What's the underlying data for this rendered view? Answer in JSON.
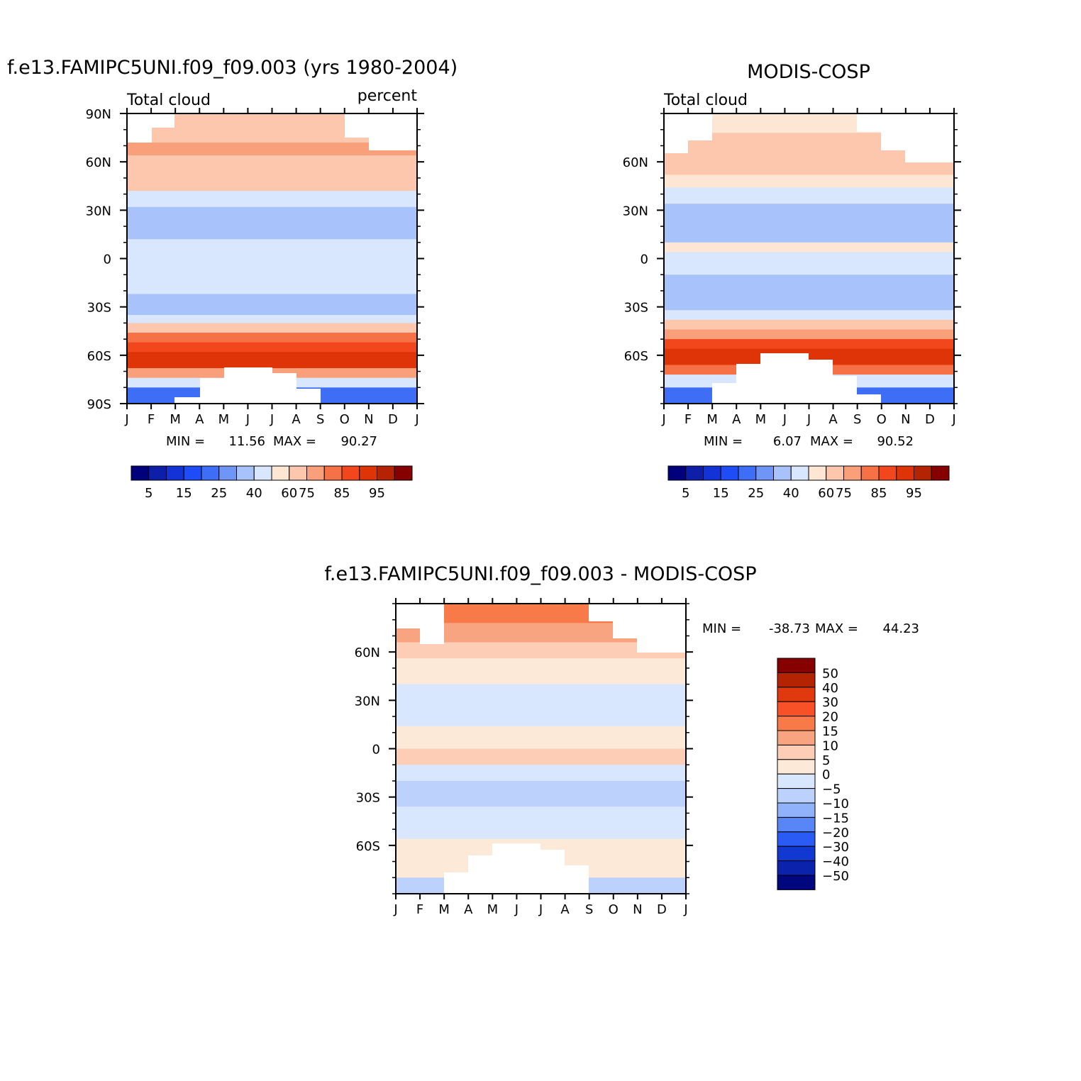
{
  "chart_data": [
    {
      "type": "heatmap",
      "title": "f.e13.FAMIPC5UNI.f09_f09.003 (yrs 1980-2004)",
      "subtitle_left": "Total cloud",
      "subtitle_right": "percent",
      "x_ticks": [
        "J",
        "F",
        "M",
        "A",
        "M",
        "J",
        "J",
        "A",
        "S",
        "O",
        "N",
        "D",
        "J"
      ],
      "y_ticks": [
        "90N",
        "60N",
        "30N",
        "0",
        "30S",
        "60S",
        "90S"
      ],
      "ylim": [
        -90,
        90
      ],
      "stats": {
        "min_label": "MIN =",
        "min": "11.56",
        "max_label": "MAX =",
        "max": "90.27"
      },
      "colorbar_labels": [
        "5",
        "15",
        "25",
        "40",
        "60",
        "75",
        "85",
        "95"
      ],
      "zonal_bands": [
        {
          "lat": [
            81,
            90
          ],
          "value": 68
        },
        {
          "lat": [
            72,
            81
          ],
          "value": 65
        },
        {
          "lat": [
            64,
            72
          ],
          "value": 70
        },
        {
          "lat": [
            52,
            64
          ],
          "value": 68
        },
        {
          "lat": [
            42,
            52
          ],
          "value": 60
        },
        {
          "lat": [
            32,
            42
          ],
          "value": 45
        },
        {
          "lat": [
            20,
            32
          ],
          "value": 38
        },
        {
          "lat": [
            8,
            20
          ],
          "value": 30
        },
        {
          "lat": [
            0,
            8
          ],
          "value": 50
        },
        {
          "lat": [
            -12,
            0
          ],
          "value": 55
        },
        {
          "lat": [
            -22,
            12
          ],
          "value": 45
        },
        {
          "lat": [
            -35,
            -22
          ],
          "value": 35
        },
        {
          "lat": [
            -40,
            -35
          ],
          "value": 45
        },
        {
          "lat": [
            -46,
            -40
          ],
          "value": 60
        },
        {
          "lat": [
            -52,
            -46
          ],
          "value": 75
        },
        {
          "lat": [
            -58,
            -52
          ],
          "value": 82
        },
        {
          "lat": [
            -68,
            -58
          ],
          "value": 88
        },
        {
          "lat": [
            -74,
            -68
          ],
          "value": 70
        },
        {
          "lat": [
            -80,
            -74
          ],
          "value": 40
        },
        {
          "lat": [
            -90,
            -80
          ],
          "value": 20
        }
      ]
    },
    {
      "type": "heatmap",
      "title": "MODIS-COSP",
      "subtitle_left": "Total cloud",
      "x_ticks": [
        "J",
        "F",
        "M",
        "A",
        "M",
        "J",
        "J",
        "A",
        "S",
        "O",
        "N",
        "D",
        "J"
      ],
      "y_ticks": [
        "60N",
        "30N",
        "0",
        "30S",
        "60S"
      ],
      "ylim": [
        -90,
        90
      ],
      "stats": {
        "min_label": "MIN =",
        "min": "6.07",
        "max_label": "MAX =",
        "max": "90.52"
      },
      "colorbar_labels": [
        "5",
        "15",
        "25",
        "40",
        "60",
        "75",
        "85",
        "95"
      ],
      "zonal_bands": [
        {
          "lat": [
            78,
            90
          ],
          "value": 55
        },
        {
          "lat": [
            66,
            78
          ],
          "value": 60
        },
        {
          "lat": [
            52,
            66
          ],
          "value": 65
        },
        {
          "lat": [
            44,
            52
          ],
          "value": 58
        },
        {
          "lat": [
            34,
            44
          ],
          "value": 45
        },
        {
          "lat": [
            20,
            34
          ],
          "value": 35
        },
        {
          "lat": [
            10,
            20
          ],
          "value": 30
        },
        {
          "lat": [
            4,
            10
          ],
          "value": 50
        },
        {
          "lat": [
            -10,
            4
          ],
          "value": 45
        },
        {
          "lat": [
            -32,
            -10
          ],
          "value": 35
        },
        {
          "lat": [
            -38,
            -32
          ],
          "value": 45
        },
        {
          "lat": [
            -44,
            -38
          ],
          "value": 60
        },
        {
          "lat": [
            -50,
            -44
          ],
          "value": 70
        },
        {
          "lat": [
            -56,
            -50
          ],
          "value": 80
        },
        {
          "lat": [
            -66,
            -56
          ],
          "value": 88
        },
        {
          "lat": [
            -72,
            -66
          ],
          "value": 75
        },
        {
          "lat": [
            -80,
            -72
          ],
          "value": 45
        },
        {
          "lat": [
            -90,
            -80
          ],
          "value": 20
        }
      ]
    },
    {
      "type": "heatmap",
      "title": "f.e13.FAMIPC5UNI.f09_f09.003 - MODIS-COSP",
      "x_ticks": [
        "J",
        "F",
        "M",
        "A",
        "M",
        "J",
        "J",
        "A",
        "S",
        "O",
        "N",
        "D",
        "J"
      ],
      "y_ticks": [
        "60N",
        "30N",
        "0",
        "30S",
        "60S"
      ],
      "ylim": [
        -90,
        90
      ],
      "stats": {
        "min_label": "MIN =",
        "min": "-38.73",
        "max_label": "MAX =",
        "max": "44.23"
      },
      "colorbar_labels": [
        "50",
        "40",
        "30",
        "20",
        "15",
        "10",
        "5",
        "0",
        "−5",
        "−10",
        "−15",
        "−20",
        "−30",
        "−40",
        "−50"
      ],
      "zonal_bands": [
        {
          "lat": [
            78,
            90
          ],
          "value": 18
        },
        {
          "lat": [
            66,
            78
          ],
          "value": 12
        },
        {
          "lat": [
            56,
            66
          ],
          "value": 7
        },
        {
          "lat": [
            40,
            56
          ],
          "value": 3
        },
        {
          "lat": [
            28,
            40
          ],
          "value": -3
        },
        {
          "lat": [
            14,
            28
          ],
          "value": -3
        },
        {
          "lat": [
            0,
            14
          ],
          "value": 2
        },
        {
          "lat": [
            -10,
            0
          ],
          "value": 5
        },
        {
          "lat": [
            -20,
            -10
          ],
          "value": -2
        },
        {
          "lat": [
            -36,
            -20
          ],
          "value": -6
        },
        {
          "lat": [
            -44,
            -36
          ],
          "value": -3
        },
        {
          "lat": [
            -56,
            -44
          ],
          "value": -2
        },
        {
          "lat": [
            -70,
            -56
          ],
          "value": 3
        },
        {
          "lat": [
            -80,
            -70
          ],
          "value": 2
        },
        {
          "lat": [
            -90,
            -80
          ],
          "value": -8
        }
      ]
    }
  ],
  "palette": {
    "abs": [
      "#00007d",
      "#0d1fa8",
      "#1433d6",
      "#1e4cf7",
      "#3d6ef5",
      "#6f95f7",
      "#a8c2fb",
      "#d8e7fe",
      "#fde6d4",
      "#fcc7ac",
      "#f9a07a",
      "#f77147",
      "#f2471d",
      "#df3308",
      "#b52402",
      "#870000"
    ],
    "diff": [
      "#870000",
      "#b52402",
      "#e0390e",
      "#f85127",
      "#f77a48",
      "#f9a481",
      "#fdcdb5",
      "#fde9d8",
      "#d8e7fe",
      "#bcd2fd",
      "#8fb2fb",
      "#5886f6",
      "#2a5bf4",
      "#1238d2",
      "#0b22ad",
      "#00067d"
    ],
    "abs_levels": [
      5,
      10,
      15,
      20,
      25,
      30,
      40,
      50,
      60,
      70,
      75,
      80,
      85,
      90,
      95
    ],
    "diff_levels": [
      50,
      40,
      30,
      20,
      15,
      10,
      5,
      0,
      -5,
      -10,
      -15,
      -20,
      -30,
      -40,
      -50
    ]
  }
}
